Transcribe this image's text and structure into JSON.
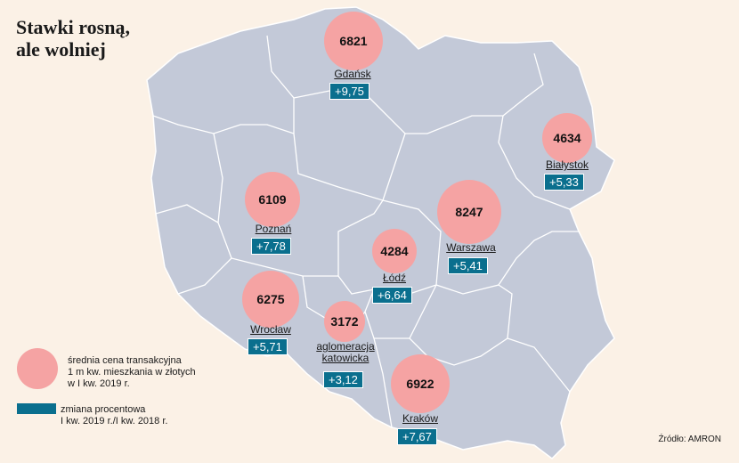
{
  "title_lines": [
    "Stawki rosną,",
    "ale wolniej"
  ],
  "colors": {
    "background": "#fbf1e6",
    "land": "#c3c9d8",
    "borders": "#ffffff",
    "bubble": "#f5a3a3",
    "change_box": "#0a6f8e"
  },
  "cities": [
    {
      "name": "Gdańsk",
      "price": "6821",
      "change": "+9,75"
    },
    {
      "name": "Białystok",
      "price": "4634",
      "change": "+5,33"
    },
    {
      "name": "Poznań",
      "price": "6109",
      "change": "+7,78"
    },
    {
      "name": "Warszawa",
      "price": "8247",
      "change": "+5,41"
    },
    {
      "name": "Łódź",
      "price": "4284",
      "change": "+6,64"
    },
    {
      "name": "Wrocław",
      "price": "6275",
      "change": "+5,71"
    },
    {
      "name": "aglomeracja katowicka",
      "price": "3172",
      "change": "+3,12"
    },
    {
      "name": "Kraków",
      "price": "6922",
      "change": "+7,67"
    }
  ],
  "legend": {
    "circle_text": [
      "średnia cena transakcyjna",
      "1 m kw. mieszkania w złotych",
      "w I kw. 2019 r."
    ],
    "rect_text": [
      "zmiana procentowa",
      "I kw. 2019 r./I kw. 2018 r."
    ]
  },
  "source": "Źródło: AMRON"
}
